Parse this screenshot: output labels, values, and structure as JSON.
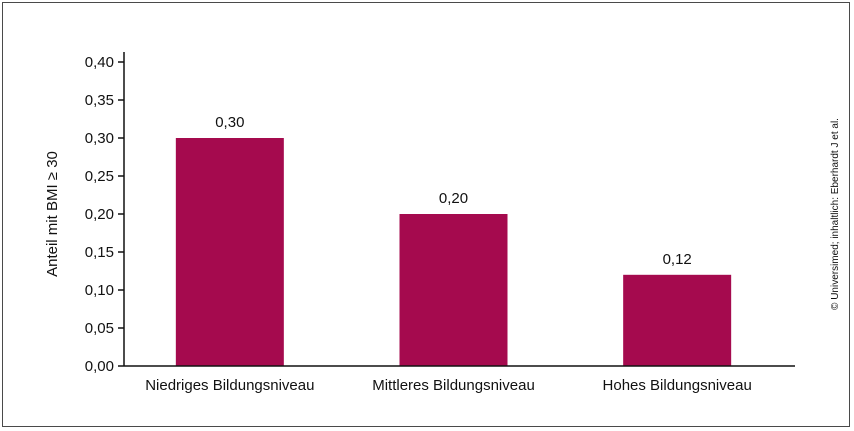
{
  "chart_data": {
    "type": "bar",
    "categories": [
      "Niedriges Bildungsniveau",
      "Mittleres Bildungsniveau",
      "Hohes Bildungsniveau"
    ],
    "values": [
      0.3,
      0.2,
      0.12
    ],
    "data_labels": [
      "0,30",
      "0,20",
      "0,12"
    ],
    "title": "",
    "xlabel": "",
    "ylabel": "Anteil mit BMI ≥ 30",
    "ylim": [
      0,
      0.4
    ],
    "yticks": [
      0,
      0.05,
      0.1,
      0.15,
      0.2,
      0.25,
      0.3,
      0.35,
      0.4
    ],
    "ytick_labels": [
      "0,00",
      "0,05",
      "0,10",
      "0,15",
      "0,20",
      "0,25",
      "0,30",
      "0,35",
      "0,40"
    ],
    "grid": false,
    "bar_color": "#a50a4e"
  },
  "credit": "© Universimed; inhaltlich: Eberhardt J et al."
}
